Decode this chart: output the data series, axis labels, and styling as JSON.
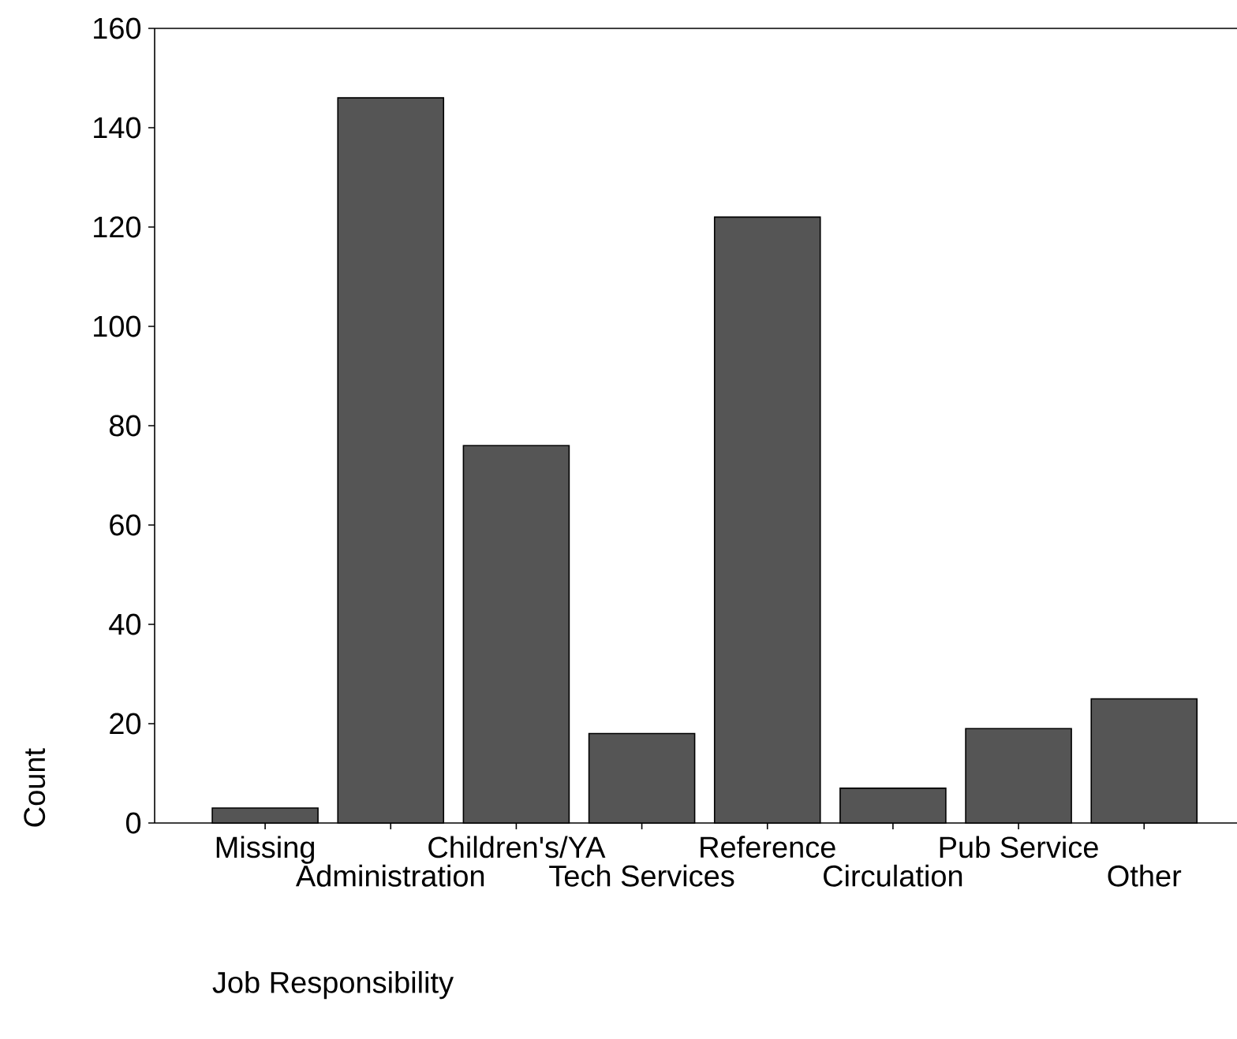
{
  "chart_data": {
    "type": "bar",
    "xlabel": "Job Responsibility",
    "ylabel": "Count",
    "categories": [
      "Missing",
      "Administration",
      "Children's/YA",
      "Tech Services",
      "Reference",
      "Circulation",
      "Pub Service",
      "Other"
    ],
    "values": [
      3,
      146,
      76,
      18,
      122,
      7,
      19,
      25
    ],
    "color": "#555555",
    "ylim": [
      0,
      160
    ],
    "yticks": [
      0,
      20,
      40,
      60,
      80,
      100,
      120,
      140,
      160
    ],
    "grid": false
  }
}
